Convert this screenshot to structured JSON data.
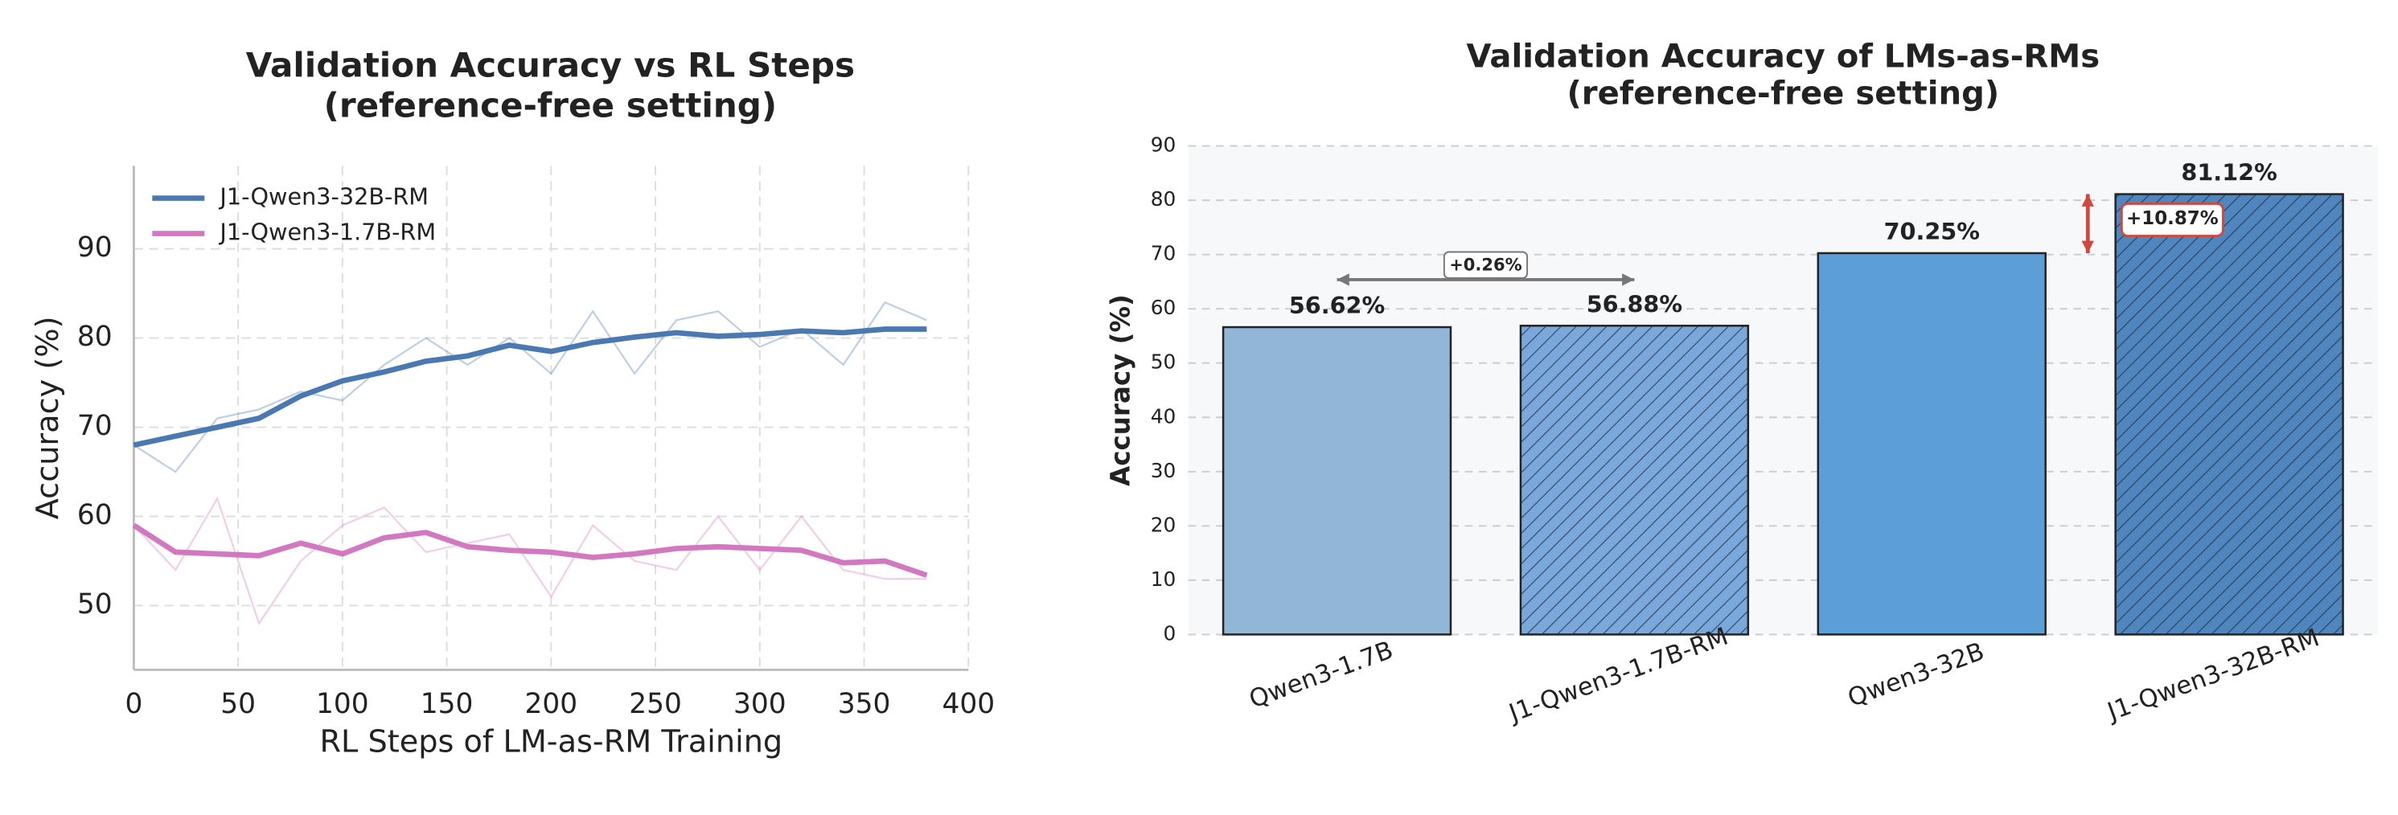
{
  "chart_data": [
    {
      "type": "line",
      "title": "Validation Accuracy vs RL Steps",
      "subtitle": "(reference-free setting)",
      "xlabel": "RL Steps of LM-as-RM Training",
      "ylabel": "Accuracy (%)",
      "x": [
        0,
        20,
        40,
        60,
        80,
        100,
        120,
        140,
        160,
        180,
        200,
        220,
        240,
        260,
        280,
        300,
        320,
        340,
        360,
        380
      ],
      "series": [
        {
          "name": "J1-Qwen3-32B-RM",
          "color": "#4a78b0",
          "values": [
            68,
            69,
            70,
            71,
            73.5,
            75.2,
            76.2,
            77.4,
            78,
            79.2,
            78.5,
            79.5,
            80.1,
            80.6,
            80.2,
            80.4,
            80.8,
            80.6,
            81,
            81
          ],
          "raw_values": [
            68,
            65,
            71,
            72,
            74,
            73,
            77,
            80,
            77,
            80,
            76,
            83,
            76,
            82,
            83,
            79,
            81,
            77,
            84,
            82
          ]
        },
        {
          "name": "J1-Qwen3-1.7B-RM",
          "color": "#d178c0",
          "values": [
            59,
            56,
            55.8,
            55.6,
            57,
            55.8,
            57.6,
            58.2,
            56.6,
            56.2,
            56,
            55.4,
            55.8,
            56.4,
            56.6,
            56.4,
            56.2,
            54.8,
            55,
            53.4
          ],
          "raw_values": [
            59,
            54,
            62,
            48,
            55,
            59,
            61,
            56,
            57,
            58,
            51,
            59,
            55,
            54,
            60,
            54,
            60,
            54,
            53,
            53
          ]
        }
      ],
      "xlim": [
        0,
        400
      ],
      "xticks": [
        0,
        50,
        100,
        150,
        200,
        250,
        300,
        350,
        400
      ],
      "ylim": [
        42.8,
        99.3
      ],
      "yticks": [
        50,
        60,
        70,
        80,
        90
      ],
      "grid": true,
      "legend": "upper left"
    },
    {
      "type": "bar",
      "title": "Validation Accuracy of LMs-as-RMs",
      "subtitle": "(reference-free setting)",
      "ylabel": "Accuracy (%)",
      "categories": [
        "Qwen3-1.7B",
        "J1-Qwen3-1.7B-RM",
        "Qwen3-32B",
        "J1-Qwen3-32B-RM"
      ],
      "values": [
        56.62,
        56.88,
        70.25,
        81.12
      ],
      "value_labels": [
        "56.62%",
        "56.88%",
        "70.25%",
        "81.12%"
      ],
      "colors": [
        "#92b6d8",
        "#7aa8da",
        "#5c9fd8",
        "#4f86bd"
      ],
      "hatch": [
        false,
        true,
        false,
        true
      ],
      "ylim": [
        0,
        90
      ],
      "yticks": [
        0,
        10,
        20,
        30,
        40,
        50,
        60,
        70,
        80,
        90
      ],
      "grid": true,
      "annotations": [
        {
          "text": "+0.26%",
          "color": "#777777"
        },
        {
          "text": "+10.87%",
          "color": "#d0473d"
        }
      ]
    }
  ]
}
